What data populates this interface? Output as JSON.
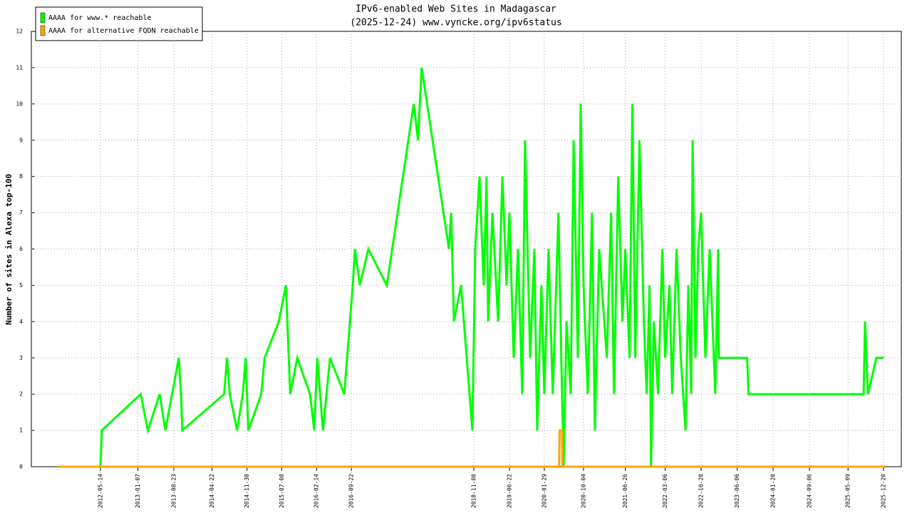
{
  "chart_data": {
    "type": "line",
    "title": "IPv6-enabled Web Sites in Madagascar",
    "subtitle": "(2025-12-24) www.vyncke.org/ipv6status",
    "y_label": "Number of sites in Alexa top-100",
    "xlim": [
      "2011-03-03",
      "2026-04-12"
    ],
    "xticks": [
      "2012-05-14",
      "2013-01-07",
      "2013-08-23",
      "2014-04-22",
      "2014-11-30",
      "2015-07-08",
      "2016-02-14",
      "2016-09-22",
      "2018-11-08",
      "2019-06-22",
      "2020-01-29",
      "2020-10-04",
      "2021-06-26",
      "2022-03-06",
      "2022-10-20",
      "2023-06-06",
      "2024-01-20",
      "2024-09-06",
      "2025-05-09",
      "2025-12-20"
    ],
    "ylim": [
      0,
      12
    ],
    "yticks": [
      0,
      1,
      2,
      3,
      4,
      5,
      6,
      7,
      8,
      9,
      10,
      11,
      12
    ],
    "grid": true,
    "legend": "top-left",
    "series": [
      {
        "name": "AAAA for www.* reachable",
        "color": "#00ff00",
        "x": [
          "2012-05-14",
          "2012-05-23",
          "2013-01-25",
          "2013-03-11",
          "2013-05-25",
          "2013-06-30",
          "2013-09-23",
          "2013-10-07",
          "2013-10-16",
          "2014-07-08",
          "2014-07-26",
          "2014-08-13",
          "2014-09-28",
          "2014-11-03",
          "2014-11-21",
          "2014-12-09",
          "2015-02-28",
          "2015-03-22",
          "2015-06-20",
          "2015-08-04",
          "2015-08-31",
          "2015-10-15",
          "2016-01-04",
          "2016-01-31",
          "2016-02-19",
          "2016-03-26",
          "2016-05-10",
          "2016-08-08",
          "2016-10-01",
          "2016-10-15",
          "2016-11-15",
          "2017-01-08",
          "2017-05-05",
          "2017-10-23",
          "2017-11-19",
          "2017-12-12",
          "2018-06-03",
          "2018-06-17",
          "2018-07-05",
          "2018-08-19",
          "2018-10-30",
          "2018-11-17",
          "2018-12-14",
          "2019-01-10",
          "2019-01-28",
          "2019-02-07",
          "2019-03-06",
          "2019-04-11",
          "2019-05-08",
          "2019-06-04",
          "2019-06-22",
          "2019-07-19",
          "2019-08-15",
          "2019-09-11",
          "2019-09-29",
          "2019-10-31",
          "2019-11-27",
          "2019-12-15",
          "2020-01-11",
          "2020-01-29",
          "2020-02-25",
          "2020-03-23",
          "2020-04-28",
          "2020-05-16",
          "2020-05-31",
          "2020-06-18",
          "2020-07-15",
          "2020-08-02",
          "2020-08-29",
          "2020-09-16",
          "2020-10-04",
          "2020-10-31",
          "2020-11-27",
          "2020-12-15",
          "2021-01-11",
          "2021-03-01",
          "2021-03-28",
          "2021-04-15",
          "2021-05-12",
          "2021-06-08",
          "2021-06-26",
          "2021-07-23",
          "2021-08-10",
          "2021-08-28",
          "2021-09-24",
          "2021-10-22",
          "2021-11-09",
          "2021-11-27",
          "2021-12-06",
          "2021-12-24",
          "2022-01-20",
          "2022-02-16",
          "2022-03-06",
          "2022-04-02",
          "2022-04-20",
          "2022-05-17",
          "2022-06-13",
          "2022-07-13",
          "2022-07-31",
          "2022-08-18",
          "2022-08-27",
          "2022-09-14",
          "2022-10-02",
          "2022-10-20",
          "2022-11-16",
          "2022-12-13",
          "2023-01-18",
          "2023-02-05",
          "2023-02-09",
          "2023-08-08",
          "2023-08-17",
          "2025-08-16",
          "2025-08-25",
          "2025-09-12",
          "2025-11-05",
          "2025-12-20"
        ],
        "values": [
          0,
          1,
          2,
          1,
          2,
          1,
          3,
          2,
          1,
          2,
          3,
          2,
          1,
          2,
          3,
          1,
          2,
          3,
          4,
          5,
          2,
          3,
          2,
          1,
          3,
          1,
          3,
          2,
          5,
          6,
          5,
          6,
          5,
          10,
          9,
          11,
          6,
          7,
          4,
          5,
          1,
          6,
          8,
          5,
          8,
          4,
          7,
          4,
          8,
          5,
          7,
          3,
          6,
          2,
          9,
          3,
          6,
          1,
          5,
          2,
          6,
          2,
          7,
          3,
          0,
          4,
          2,
          9,
          3,
          10,
          5,
          2,
          7,
          1,
          6,
          3,
          7,
          2,
          8,
          4,
          6,
          3,
          10,
          3,
          9,
          4,
          2,
          5,
          0,
          4,
          2,
          6,
          3,
          5,
          2,
          6,
          3,
          1,
          5,
          2,
          9,
          3,
          6,
          7,
          3,
          6,
          2,
          6,
          3,
          3,
          2,
          2,
          4,
          2,
          3,
          3
        ]
      },
      {
        "name": "AAAA for alternative FQDN reachable",
        "color": "#ffa500",
        "x": [
          "2011-08-21",
          "2020-05-02",
          "2020-05-05",
          "2020-05-20",
          "2020-05-23",
          "2025-12-29"
        ],
        "values": [
          0,
          0,
          1,
          1,
          0,
          0
        ]
      }
    ]
  }
}
